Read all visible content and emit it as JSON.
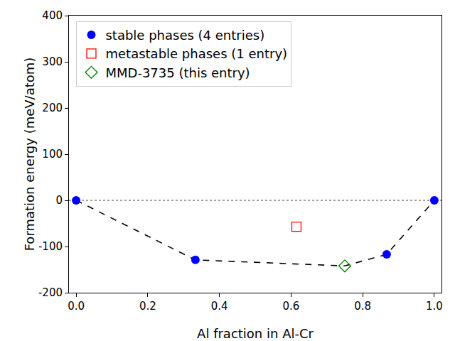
{
  "chart_data": {
    "type": "scatter",
    "x_label": "Al fraction in Al-Cr",
    "y_label": "Formation energy (meV/atom)",
    "xlim": [
      -0.02,
      1.02
    ],
    "ylim": [
      -200,
      400
    ],
    "xticks": [
      {
        "value": 0,
        "label": "0.0"
      },
      {
        "value": 0.2,
        "label": "0.2"
      },
      {
        "value": 0.4,
        "label": "0.4"
      },
      {
        "value": 0.6,
        "label": "0.6"
      },
      {
        "value": 0.8,
        "label": "0.8"
      },
      {
        "value": 1,
        "label": "1.0"
      }
    ],
    "yticks": [
      -200,
      -100,
      0,
      100,
      200,
      300,
      400
    ],
    "grid": false,
    "legend": "upper left",
    "series": [
      {
        "type": "line",
        "line_style": "dotted",
        "color": "#808080",
        "x": [
          -0.02,
          1.02
        ],
        "values": [
          0,
          0
        ]
      },
      {
        "type": "line",
        "line_style": "dashed",
        "color": "#000000",
        "x": [
          0,
          0.333,
          0.75,
          0.867,
          1
        ],
        "values": [
          0,
          -129,
          -142,
          -117,
          0
        ]
      },
      {
        "name": "stable phases (4 entries)",
        "type": "scatter",
        "marker": "circle",
        "color": "#0000ff",
        "x": [
          0,
          0.333,
          0.867,
          1
        ],
        "values": [
          0,
          -129,
          -117,
          0
        ]
      },
      {
        "name": "metastable phases (1 entry)",
        "type": "scatter",
        "marker": "square-open",
        "color": "#ff0000",
        "x": [
          0.615
        ],
        "values": [
          -57
        ]
      },
      {
        "name": "MMD-3735 (this entry)",
        "type": "scatter",
        "marker": "diamond-open",
        "color": "#008000",
        "x": [
          0.75
        ],
        "values": [
          -142
        ]
      }
    ]
  }
}
